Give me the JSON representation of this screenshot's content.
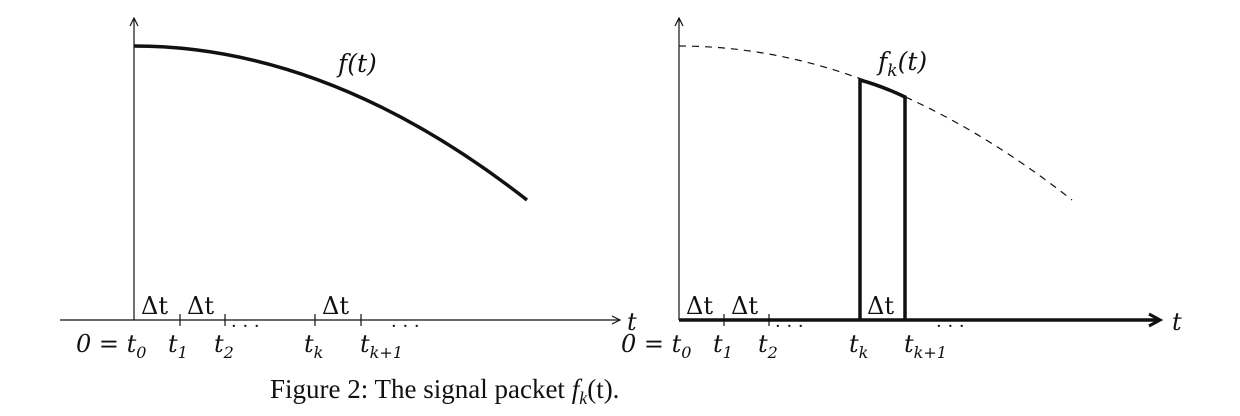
{
  "left_panel": {
    "function_label": "f(t)",
    "axis_var": "t",
    "ticks": {
      "t0": "0 = t",
      "t0_sub": "0",
      "t1": "t",
      "t1_sub": "1",
      "t2": "t",
      "t2_sub": "2",
      "tk": "t",
      "tk_sub": "k",
      "tk1": "t",
      "tk1_sub": "k+1",
      "dots": "· · ·"
    },
    "delta_label": "Δt"
  },
  "right_panel": {
    "function_label_main": "f",
    "function_label_sub": "k",
    "function_label_arg": "(t)",
    "axis_var": "t",
    "ticks": {
      "t0": "0 = t",
      "t0_sub": "0",
      "t1": "t",
      "t1_sub": "1",
      "t2": "t",
      "t2_sub": "2",
      "tk": "t",
      "tk_sub": "k",
      "tk1": "t",
      "tk1_sub": "k+1",
      "dots": "· · ·"
    },
    "delta_label": "Δt"
  },
  "caption": {
    "prefix": "Figure 2: The signal packet ",
    "fn": "f",
    "fn_sub": "k",
    "suffix": "(t)."
  }
}
